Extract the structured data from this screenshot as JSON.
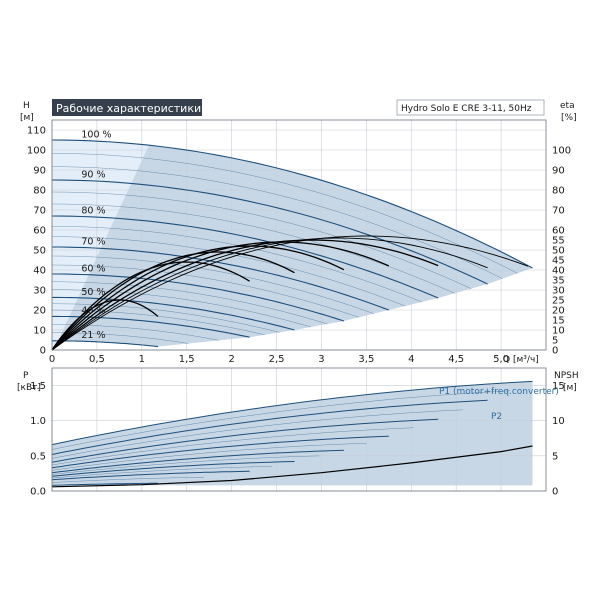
{
  "header": {
    "title": "Рабочие характеристики",
    "model": "Hydro Solo E CRE 3-11, 50Hz"
  },
  "colors": {
    "band": "#c7d7e6",
    "band_light": "#e4eef8",
    "curve": "#1d4f7c",
    "eff": "#000000",
    "header_bg": "#36404d",
    "header_fg": "#ffffff"
  },
  "chart_data": [
    {
      "type": "line",
      "name": "head",
      "x_label": "Q",
      "x_unit": "[м³/ч]",
      "y_label": "H",
      "y_unit": "[м]",
      "y2_label": "eta",
      "y2_unit": "[%]",
      "xlim": [
        0,
        5.5
      ],
      "ylim": [
        0,
        115
      ],
      "y2lim": [
        0,
        115
      ],
      "x_ticks": [
        "0",
        "0,5",
        "1",
        "1,5",
        "2",
        "2,5",
        "3",
        "3,5",
        "4",
        "4,5",
        "5,0"
      ],
      "y_ticks": [
        "0",
        "10",
        "20",
        "30",
        "40",
        "50",
        "60",
        "70",
        "80",
        "90",
        "100",
        "110"
      ],
      "y2_ticks": [
        "0",
        "5",
        "10",
        "15",
        "20",
        "25",
        "30",
        "35",
        "40",
        "45",
        "50",
        "55",
        "60",
        "70",
        "80",
        "90",
        "100"
      ],
      "speed_labels": [
        "100 %",
        "90 %",
        "80 %",
        "70 %",
        "60 %",
        "50 %",
        "40 %",
        "21 %"
      ],
      "speed_curves": [
        {
          "speed": 1.0,
          "H0": 105,
          "Qmax": 5.35,
          "Hend": 41
        },
        {
          "speed": 0.9,
          "H0": 85,
          "Qmax": 4.85,
          "Hend": 33
        },
        {
          "speed": 0.8,
          "H0": 67,
          "Qmax": 4.3,
          "Hend": 26
        },
        {
          "speed": 0.7,
          "H0": 51.5,
          "Qmax": 3.75,
          "Hend": 20
        },
        {
          "speed": 0.6,
          "H0": 38,
          "Qmax": 3.25,
          "Hend": 14.5
        },
        {
          "speed": 0.5,
          "H0": 26.3,
          "Qmax": 2.7,
          "Hend": 10
        },
        {
          "speed": 0.4,
          "H0": 16.8,
          "Qmax": 2.2,
          "Hend": 6.4
        },
        {
          "speed": 0.21,
          "H0": 4.6,
          "Qmax": 1.18,
          "Hend": 1.7
        }
      ],
      "eff_curves": [
        {
          "speed": 1.0,
          "peak": 57,
          "qpeak": 3.5,
          "qend": 5.3
        },
        {
          "speed": 0.9,
          "peak": 56,
          "qpeak": 3.2,
          "qend": 4.85
        },
        {
          "speed": 0.8,
          "peak": 55,
          "qpeak": 2.9,
          "qend": 4.3
        },
        {
          "speed": 0.7,
          "peak": 54,
          "qpeak": 2.55,
          "qend": 3.75
        },
        {
          "speed": 0.6,
          "peak": 52,
          "qpeak": 2.2,
          "qend": 3.25
        },
        {
          "speed": 0.5,
          "peak": 49,
          "qpeak": 1.85,
          "qend": 2.7
        },
        {
          "speed": 0.4,
          "peak": 44,
          "qpeak": 1.5,
          "qend": 2.2
        },
        {
          "speed": 0.21,
          "peak": 25,
          "qpeak": 0.75,
          "qend": 1.18
        }
      ]
    },
    {
      "type": "line",
      "name": "power",
      "x_label": "Q",
      "y_label": "P",
      "y_unit": "[кВт]",
      "y2_label": "NPSH",
      "y2_unit": "[м]",
      "xlim": [
        0,
        5.5
      ],
      "ylim": [
        0,
        1.75
      ],
      "y2lim": [
        0,
        17.5
      ],
      "y_ticks": [
        "0.0",
        "0.5",
        "1.0",
        "1.5"
      ],
      "y2_ticks": [
        "0",
        "5",
        "10",
        "15"
      ],
      "series_labels": [
        "P1 (motor+freq.converter)",
        "P2"
      ],
      "power_curves": [
        {
          "speed": 1.0,
          "p0": 0.66,
          "pend": 1.56,
          "qend": 5.35
        },
        {
          "speed": 0.9,
          "p0": 0.52,
          "pend": 1.29,
          "qend": 4.85
        },
        {
          "speed": 0.8,
          "p0": 0.41,
          "pend": 1.02,
          "qend": 4.3
        },
        {
          "speed": 0.7,
          "p0": 0.33,
          "pend": 0.78,
          "qend": 3.75
        },
        {
          "speed": 0.6,
          "p0": 0.26,
          "pend": 0.58,
          "qend": 3.25
        },
        {
          "speed": 0.5,
          "p0": 0.21,
          "pend": 0.42,
          "qend": 2.7
        },
        {
          "speed": 0.4,
          "p0": 0.16,
          "pend": 0.28,
          "qend": 2.2
        },
        {
          "speed": 0.21,
          "p0": 0.08,
          "pend": 0.11,
          "qend": 1.18
        }
      ],
      "npsh": [
        {
          "q": 0,
          "h": 0.6
        },
        {
          "q": 1,
          "h": 0.9
        },
        {
          "q": 2,
          "h": 1.5
        },
        {
          "q": 3,
          "h": 2.6
        },
        {
          "q": 4,
          "h": 4.0
        },
        {
          "q": 5,
          "h": 5.6
        },
        {
          "q": 5.35,
          "h": 6.4
        }
      ]
    }
  ]
}
